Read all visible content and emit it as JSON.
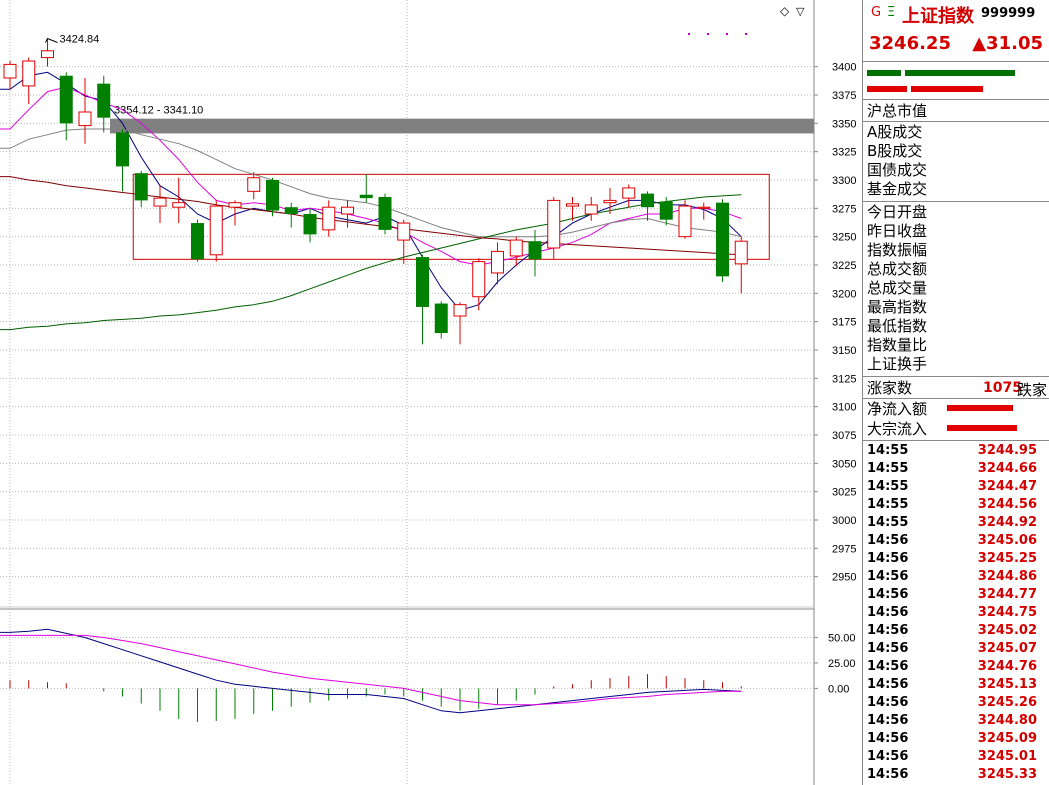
{
  "header": {
    "flags": [
      "G",
      "Ξ"
    ],
    "name": "上证指数",
    "code": "999999",
    "price": "3246.25",
    "change": "▲31.05",
    "colors": {
      "up": "#e00000",
      "down": "#008000"
    }
  },
  "stats": {
    "market_value_label": "沪总市值",
    "volume_labels": [
      "A股成交",
      "B股成交",
      "国债成交",
      "基金成交"
    ],
    "index_labels": [
      "今日开盘",
      "昨日收盘",
      "指数振幅",
      "总成交额",
      "总成交量",
      "最高指数",
      "最低指数",
      "指数量比",
      "上证换手"
    ],
    "breadth": {
      "label": "涨家数",
      "value": "1075",
      "label2": "跌家"
    },
    "flows": [
      {
        "label": "净流入额"
      },
      {
        "label": "大宗流入"
      }
    ]
  },
  "ticks": [
    {
      "time": "14:55",
      "price": "3244.95"
    },
    {
      "time": "14:55",
      "price": "3244.66"
    },
    {
      "time": "14:55",
      "price": "3244.47"
    },
    {
      "time": "14:55",
      "price": "3244.56"
    },
    {
      "time": "14:55",
      "price": "3244.92"
    },
    {
      "time": "14:56",
      "price": "3245.06"
    },
    {
      "time": "14:56",
      "price": "3245.25"
    },
    {
      "time": "14:56",
      "price": "3244.86"
    },
    {
      "time": "14:56",
      "price": "3244.77"
    },
    {
      "time": "14:56",
      "price": "3244.75"
    },
    {
      "time": "14:56",
      "price": "3245.02"
    },
    {
      "time": "14:56",
      "price": "3245.07"
    },
    {
      "time": "14:56",
      "price": "3244.76"
    },
    {
      "time": "14:56",
      "price": "3245.13"
    },
    {
      "time": "14:56",
      "price": "3245.26"
    },
    {
      "time": "14:56",
      "price": "3244.80"
    },
    {
      "time": "14:56",
      "price": "3245.09"
    },
    {
      "time": "14:56",
      "price": "3245.01"
    },
    {
      "time": "14:56",
      "price": "3245.33"
    }
  ],
  "chart_data": {
    "type": "candlestick",
    "main": {
      "ylim": [
        2925,
        3450
      ],
      "yticks": [
        3400,
        3375,
        3350,
        3325,
        3300,
        3275,
        3250,
        3225,
        3200,
        3175,
        3150,
        3125,
        3100,
        3075,
        3050,
        3025,
        3000,
        2975,
        2950
      ],
      "annotations": {
        "high": "3424.84",
        "band": "3354.12 - 3341.10"
      },
      "band": [
        3341.1,
        3354.12
      ],
      "box": [
        3230,
        3305
      ],
      "candles": [
        {
          "o": 3390,
          "h": 3405,
          "l": 3380,
          "c": 3402
        },
        {
          "o": 3383,
          "h": 3408,
          "l": 3367,
          "c": 3405
        },
        {
          "o": 3408,
          "h": 3425,
          "l": 3400,
          "c": 3414
        },
        {
          "o": 3392,
          "h": 3395,
          "l": 3335,
          "c": 3350
        },
        {
          "o": 3348,
          "h": 3390,
          "l": 3332,
          "c": 3360
        },
        {
          "o": 3385,
          "h": 3392,
          "l": 3342,
          "c": 3355
        },
        {
          "o": 3342,
          "h": 3345,
          "l": 3290,
          "c": 3312
        },
        {
          "o": 3306,
          "h": 3308,
          "l": 3276,
          "c": 3282
        },
        {
          "o": 3277,
          "h": 3295,
          "l": 3262,
          "c": 3284
        },
        {
          "o": 3276,
          "h": 3302,
          "l": 3262,
          "c": 3280
        },
        {
          "o": 3262,
          "h": 3265,
          "l": 3228,
          "c": 3230
        },
        {
          "o": 3234,
          "h": 3282,
          "l": 3228,
          "c": 3277
        },
        {
          "o": 3276,
          "h": 3282,
          "l": 3260,
          "c": 3280
        },
        {
          "o": 3290,
          "h": 3307,
          "l": 3283,
          "c": 3302
        },
        {
          "o": 3300,
          "h": 3302,
          "l": 3268,
          "c": 3273
        },
        {
          "o": 3276,
          "h": 3280,
          "l": 3258,
          "c": 3270
        },
        {
          "o": 3270,
          "h": 3275,
          "l": 3245,
          "c": 3252
        },
        {
          "o": 3256,
          "h": 3282,
          "l": 3250,
          "c": 3276
        },
        {
          "o": 3270,
          "h": 3282,
          "l": 3258,
          "c": 3276
        },
        {
          "o": 3287,
          "h": 3305,
          "l": 3280,
          "c": 3284
        },
        {
          "o": 3285,
          "h": 3288,
          "l": 3252,
          "c": 3256
        },
        {
          "o": 3247,
          "h": 3265,
          "l": 3226,
          "c": 3262
        },
        {
          "o": 3232,
          "h": 3234,
          "l": 3155,
          "c": 3188
        },
        {
          "o": 3191,
          "h": 3193,
          "l": 3160,
          "c": 3165
        },
        {
          "o": 3180,
          "h": 3192,
          "l": 3155,
          "c": 3190
        },
        {
          "o": 3197,
          "h": 3231,
          "l": 3185,
          "c": 3228
        },
        {
          "o": 3218,
          "h": 3245,
          "l": 3208,
          "c": 3237
        },
        {
          "o": 3233,
          "h": 3250,
          "l": 3224,
          "c": 3247
        },
        {
          "o": 3246,
          "h": 3256,
          "l": 3215,
          "c": 3230
        },
        {
          "o": 3240,
          "h": 3285,
          "l": 3230,
          "c": 3282
        },
        {
          "o": 3277,
          "h": 3285,
          "l": 3264,
          "c": 3279
        },
        {
          "o": 3270,
          "h": 3285,
          "l": 3264,
          "c": 3278
        },
        {
          "o": 3280,
          "h": 3293,
          "l": 3270,
          "c": 3282
        },
        {
          "o": 3284,
          "h": 3296,
          "l": 3276,
          "c": 3293
        },
        {
          "o": 3288,
          "h": 3290,
          "l": 3264,
          "c": 3276
        },
        {
          "o": 3281,
          "h": 3285,
          "l": 3260,
          "c": 3265
        },
        {
          "o": 3250,
          "h": 3282,
          "l": 3248,
          "c": 3277
        },
        {
          "o": 3275,
          "h": 3280,
          "l": 3265,
          "c": 3276
        },
        {
          "o": 3280,
          "h": 3283,
          "l": 3210,
          "c": 3215
        },
        {
          "o": 3226,
          "h": 3250,
          "l": 3200,
          "c": 3246
        }
      ],
      "ma": [
        {
          "color": "#000080",
          "values": [
            3380,
            3392,
            3395,
            3385,
            3374,
            3370,
            3350,
            3320,
            3295,
            3285,
            3270,
            3262,
            3270,
            3275,
            3272,
            3270,
            3275,
            3268,
            3265,
            3262,
            3268,
            3260,
            3232,
            3205,
            3185,
            3190,
            3210,
            3225,
            3238,
            3250,
            3262,
            3270,
            3276,
            3282,
            3282,
            3278,
            3278,
            3274,
            3266,
            3250
          ]
        },
        {
          "color": "#e000e0",
          "values": [
            3345,
            3362,
            3378,
            3382,
            3375,
            3368,
            3362,
            3350,
            3335,
            3318,
            3298,
            3282,
            3278,
            3280,
            3278,
            3273,
            3275,
            3273,
            3270,
            3266,
            3262,
            3254,
            3245,
            3237,
            3228,
            3225,
            3228,
            3232,
            3236,
            3240,
            3245,
            3252,
            3262,
            3266,
            3270,
            3270,
            3275,
            3275,
            3272,
            3266
          ]
        },
        {
          "color": "#808080",
          "values": [
            3328,
            3336,
            3340,
            3344,
            3345,
            3345,
            3345,
            3340,
            3336,
            3332,
            3326,
            3318,
            3310,
            3305,
            3300,
            3294,
            3288,
            3284,
            3282,
            3280,
            3276,
            3270,
            3264,
            3258,
            3254,
            3250,
            3250,
            3250,
            3250,
            3251,
            3254,
            3258,
            3262,
            3265,
            3266,
            3262,
            3258,
            3256,
            3254,
            3250
          ]
        },
        {
          "color": "#006000",
          "values": [
            3168,
            3170,
            3171,
            3173,
            3174,
            3176,
            3177,
            3178,
            3180,
            3181,
            3183,
            3185,
            3188,
            3190,
            3193,
            3198,
            3204,
            3210,
            3216,
            3222,
            3227,
            3232,
            3236,
            3240,
            3244,
            3248,
            3252,
            3256,
            3259,
            3262,
            3266,
            3270,
            3273,
            3276,
            3279,
            3281,
            3283,
            3285,
            3286,
            3287
          ]
        },
        {
          "color": "#800000",
          "values": [
            3303,
            3300,
            3298,
            3295,
            3293,
            3291,
            3289,
            3287,
            3285,
            3283,
            3281,
            3278,
            3276,
            3274,
            3272,
            3270,
            3267,
            3265,
            3263,
            3261,
            3259,
            3257,
            3255,
            3253,
            3251,
            3249,
            3248,
            3246,
            3245,
            3244,
            3243,
            3242,
            3241,
            3240,
            3239,
            3238,
            3237,
            3236,
            3235,
            3234
          ]
        }
      ]
    },
    "sub": {
      "ylim": [
        -90,
        75
      ],
      "yticks": [
        "50.00",
        "25.00",
        "0.00"
      ],
      "hist": [
        8,
        8,
        6,
        5,
        0,
        -3,
        -8,
        -15,
        -22,
        -30,
        -33,
        -32,
        -30,
        -25,
        -22,
        -18,
        -14,
        -12,
        -10,
        -8,
        -6,
        -8,
        -12,
        -18,
        -22,
        -20,
        -16,
        -12,
        -6,
        2,
        4,
        8,
        10,
        12,
        14,
        12,
        10,
        8,
        6,
        2
      ],
      "dif": [
        55,
        56,
        58,
        54,
        50,
        44,
        38,
        32,
        26,
        20,
        14,
        8,
        4,
        2,
        0,
        -2,
        -4,
        -6,
        -6,
        -6,
        -8,
        -10,
        -16,
        -22,
        -24,
        -22,
        -20,
        -18,
        -16,
        -14,
        -12,
        -10,
        -8,
        -6,
        -4,
        -3,
        -2,
        -1,
        -2,
        -3
      ],
      "dea": [
        52,
        52,
        52,
        52,
        52,
        50,
        47,
        44,
        40,
        36,
        32,
        28,
        24,
        20,
        16,
        13,
        10,
        8,
        6,
        4,
        2,
        0,
        -4,
        -8,
        -12,
        -14,
        -16,
        -16,
        -16,
        -15,
        -14,
        -12,
        -10,
        -9,
        -8,
        -6,
        -5,
        -4,
        -3,
        -3
      ],
      "colors": {
        "dif": "#000080",
        "dea": "#e000e0",
        "pos": "#c00000",
        "neg": "#008000"
      }
    }
  }
}
